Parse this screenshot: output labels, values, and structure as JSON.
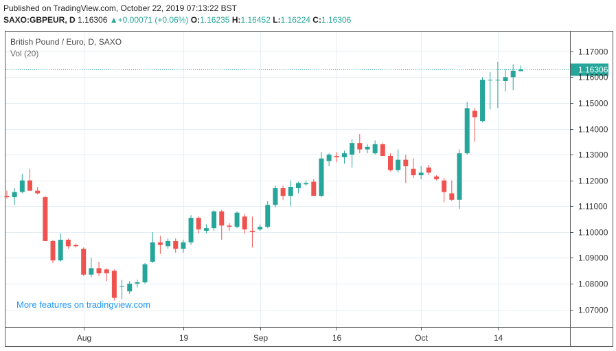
{
  "header": {
    "published": "Published on TradingView.com, October 22, 2019 07:13:22 BST",
    "symbol": "SAXO:GBPEUR, D",
    "last": "1.16306",
    "change": "+0.00071 (+0.06%)",
    "o_label": "O:",
    "o": "1.16235",
    "h_label": "H:",
    "h": "1.16452",
    "l_label": "L:",
    "l": "1.16224",
    "c_label": "C:",
    "c": "1.16306"
  },
  "chart_data": {
    "type": "candlestick",
    "title": "British Pound / Euro, D, SAXO",
    "subtitle": "Vol (20)",
    "watermark": "More features on tradingview.com",
    "ylim": [
      1.0625,
      1.1775
    ],
    "yticks": [
      1.07,
      1.08,
      1.09,
      1.1,
      1.11,
      1.12,
      1.13,
      1.14,
      1.15,
      1.16,
      1.17
    ],
    "ytick_labels": [
      "1.07000",
      "1.08000",
      "1.09000",
      "1.10000",
      "1.11000",
      "1.12000",
      "1.13000",
      "1.14000",
      "1.15000",
      "1.16000",
      "1.17000"
    ],
    "last_price": 1.16306,
    "last_price_label": "1.16306",
    "xtick_labels": [
      {
        "label": "Aug",
        "index": 10
      },
      {
        "label": "19",
        "index": 23
      },
      {
        "label": "Sep",
        "index": 33
      },
      {
        "label": "16",
        "index": 43
      },
      {
        "label": "Oct",
        "index": 54
      },
      {
        "label": "14",
        "index": 64
      }
    ],
    "candles": [
      {
        "o": 1.114,
        "h": 1.116,
        "l": 1.113,
        "c": 1.1135
      },
      {
        "o": 1.1135,
        "h": 1.117,
        "l": 1.1105,
        "c": 1.1155
      },
      {
        "o": 1.1155,
        "h": 1.1225,
        "l": 1.115,
        "c": 1.12
      },
      {
        "o": 1.12,
        "h": 1.1245,
        "l": 1.1165,
        "c": 1.116
      },
      {
        "o": 1.116,
        "h": 1.1175,
        "l": 1.1145,
        "c": 1.115
      },
      {
        "o": 1.1135,
        "h": 1.114,
        "l": 1.0965,
        "c": 1.0965
      },
      {
        "o": 1.0965,
        "h": 1.097,
        "l": 1.088,
        "c": 1.089
      },
      {
        "o": 1.089,
        "h": 1.0995,
        "l": 1.0885,
        "c": 1.097
      },
      {
        "o": 1.097,
        "h": 1.0975,
        "l": 1.0935,
        "c": 1.0945
      },
      {
        "o": 1.095,
        "h": 1.0955,
        "l": 1.094,
        "c": 1.0945
      },
      {
        "o": 1.0935,
        "h": 1.094,
        "l": 1.083,
        "c": 1.0835
      },
      {
        "o": 1.0835,
        "h": 1.09,
        "l": 1.0825,
        "c": 1.086
      },
      {
        "o": 1.086,
        "h": 1.0885,
        "l": 1.083,
        "c": 1.084
      },
      {
        "o": 1.0855,
        "h": 1.086,
        "l": 1.081,
        "c": 1.084
      },
      {
        "o": 1.085,
        "h": 1.0855,
        "l": 1.0735,
        "c": 1.0745
      },
      {
        "o": 1.079,
        "h": 1.0815,
        "l": 1.074,
        "c": 1.079
      },
      {
        "o": 1.077,
        "h": 1.081,
        "l": 1.076,
        "c": 1.08
      },
      {
        "o": 1.08,
        "h": 1.0815,
        "l": 1.0785,
        "c": 1.0805
      },
      {
        "o": 1.0805,
        "h": 1.088,
        "l": 1.08,
        "c": 1.0875
      },
      {
        "o": 1.0885,
        "h": 1.1,
        "l": 1.088,
        "c": 1.096
      },
      {
        "o": 1.096,
        "h": 1.0985,
        "l": 1.0915,
        "c": 1.095
      },
      {
        "o": 1.0945,
        "h": 1.0975,
        "l": 1.0935,
        "c": 1.0965
      },
      {
        "o": 1.0965,
        "h": 1.0975,
        "l": 1.092,
        "c": 1.0935
      },
      {
        "o": 1.0935,
        "h": 1.097,
        "l": 1.092,
        "c": 1.096
      },
      {
        "o": 1.096,
        "h": 1.1065,
        "l": 1.095,
        "c": 1.1055
      },
      {
        "o": 1.1055,
        "h": 1.106,
        "l": 1.0995,
        "c": 1.101
      },
      {
        "o": 1.1005,
        "h": 1.103,
        "l": 1.0995,
        "c": 1.1015
      },
      {
        "o": 1.1015,
        "h": 1.1085,
        "l": 1.1005,
        "c": 1.108
      },
      {
        "o": 1.108,
        "h": 1.1085,
        "l": 1.097,
        "c": 1.1025
      },
      {
        "o": 1.1025,
        "h": 1.1035,
        "l": 1.1005,
        "c": 1.102
      },
      {
        "o": 1.102,
        "h": 1.108,
        "l": 1.1015,
        "c": 1.1075
      },
      {
        "o": 1.106,
        "h": 1.107,
        "l": 1.0995,
        "c": 1.101
      },
      {
        "o": 1.1005,
        "h": 1.106,
        "l": 1.094,
        "c": 1.1
      },
      {
        "o": 1.101,
        "h": 1.103,
        "l": 1.1005,
        "c": 1.102
      },
      {
        "o": 1.102,
        "h": 1.112,
        "l": 1.1015,
        "c": 1.1105
      },
      {
        "o": 1.1105,
        "h": 1.118,
        "l": 1.1095,
        "c": 1.117
      },
      {
        "o": 1.117,
        "h": 1.118,
        "l": 1.1125,
        "c": 1.114
      },
      {
        "o": 1.114,
        "h": 1.12,
        "l": 1.11,
        "c": 1.1175
      },
      {
        "o": 1.117,
        "h": 1.1195,
        "l": 1.115,
        "c": 1.119
      },
      {
        "o": 1.1185,
        "h": 1.12,
        "l": 1.118,
        "c": 1.119
      },
      {
        "o": 1.1195,
        "h": 1.1205,
        "l": 1.114,
        "c": 1.114
      },
      {
        "o": 1.114,
        "h": 1.131,
        "l": 1.1135,
        "c": 1.1285
      },
      {
        "o": 1.1275,
        "h": 1.1305,
        "l": 1.1255,
        "c": 1.13
      },
      {
        "o": 1.1295,
        "h": 1.131,
        "l": 1.127,
        "c": 1.129
      },
      {
        "o": 1.129,
        "h": 1.1315,
        "l": 1.1265,
        "c": 1.1305
      },
      {
        "o": 1.13,
        "h": 1.136,
        "l": 1.125,
        "c": 1.1345
      },
      {
        "o": 1.1345,
        "h": 1.138,
        "l": 1.1305,
        "c": 1.132
      },
      {
        "o": 1.132,
        "h": 1.134,
        "l": 1.1305,
        "c": 1.133
      },
      {
        "o": 1.1305,
        "h": 1.1355,
        "l": 1.13,
        "c": 1.134
      },
      {
        "o": 1.134,
        "h": 1.1345,
        "l": 1.1295,
        "c": 1.1295
      },
      {
        "o": 1.1295,
        "h": 1.1305,
        "l": 1.1235,
        "c": 1.124
      },
      {
        "o": 1.124,
        "h": 1.132,
        "l": 1.123,
        "c": 1.128
      },
      {
        "o": 1.128,
        "h": 1.13,
        "l": 1.119,
        "c": 1.1255
      },
      {
        "o": 1.1245,
        "h": 1.1285,
        "l": 1.121,
        "c": 1.122
      },
      {
        "o": 1.122,
        "h": 1.1255,
        "l": 1.1205,
        "c": 1.123
      },
      {
        "o": 1.125,
        "h": 1.126,
        "l": 1.122,
        "c": 1.123
      },
      {
        "o": 1.1215,
        "h": 1.122,
        "l": 1.12,
        "c": 1.1205
      },
      {
        "o": 1.12,
        "h": 1.121,
        "l": 1.1115,
        "c": 1.1155
      },
      {
        "o": 1.115,
        "h": 1.12,
        "l": 1.112,
        "c": 1.1125
      },
      {
        "o": 1.1125,
        "h": 1.132,
        "l": 1.109,
        "c": 1.1305
      },
      {
        "o": 1.1305,
        "h": 1.1505,
        "l": 1.13,
        "c": 1.148
      },
      {
        "o": 1.147,
        "h": 1.148,
        "l": 1.135,
        "c": 1.1445
      },
      {
        "o": 1.143,
        "h": 1.16,
        "l": 1.1425,
        "c": 1.159
      },
      {
        "o": 1.159,
        "h": 1.162,
        "l": 1.1475,
        "c": 1.159
      },
      {
        "o": 1.159,
        "h": 1.166,
        "l": 1.148,
        "c": 1.159
      },
      {
        "o": 1.1585,
        "h": 1.163,
        "l": 1.1545,
        "c": 1.16
      },
      {
        "o": 1.16,
        "h": 1.165,
        "l": 1.155,
        "c": 1.1625
      },
      {
        "o": 1.16235,
        "h": 1.16452,
        "l": 1.16224,
        "c": 1.16306
      }
    ]
  }
}
